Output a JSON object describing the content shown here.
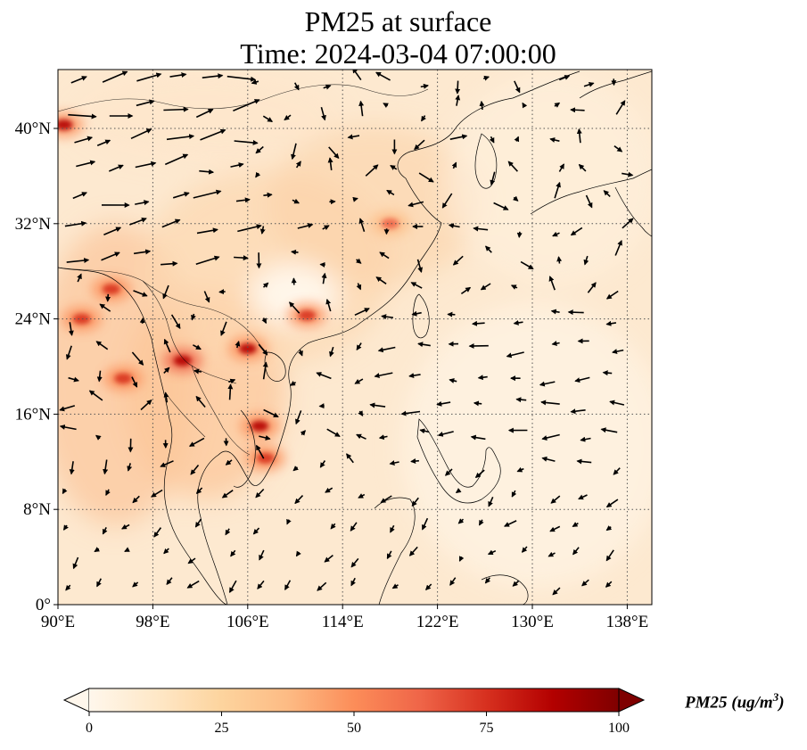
{
  "title": {
    "line1": "PM25 at surface",
    "line2": "Time: 2024-03-04 07:00:00"
  },
  "map": {
    "projection": "PlateCarree",
    "lon_range": [
      90,
      140
    ],
    "lat_range": [
      0,
      45
    ],
    "gridlines": "dotted",
    "lon_ticks": [
      "90°E",
      "98°E",
      "106°E",
      "114°E",
      "122°E",
      "130°E",
      "138°E"
    ],
    "lat_ticks": [
      "0°",
      "8°N",
      "16°N",
      "24°N",
      "32°N",
      "40°N"
    ],
    "lon_tick_values": [
      90,
      98,
      106,
      114,
      122,
      130,
      138
    ],
    "lat_tick_values": [
      0,
      8,
      16,
      24,
      32,
      40
    ],
    "overlay": "wind vectors (arrows)",
    "field": "PM25 concentration, OrRd colormap"
  },
  "colorbar": {
    "label": "PM25 (ug/m",
    "label_sup": "3",
    "label_close": ")",
    "ticks": [
      "0",
      "25",
      "50",
      "75",
      "100"
    ],
    "tick_values": [
      0,
      25,
      50,
      75,
      100
    ],
    "range": [
      0,
      100
    ],
    "extend": "both",
    "colors": [
      "#fff7ec",
      "#fee8c8",
      "#fdd49e",
      "#fdbb84",
      "#fc8d59",
      "#ef6548",
      "#d7301f",
      "#b30000",
      "#7f0000"
    ]
  },
  "hotspots": [
    {
      "lon": 90.5,
      "lat": 40.3,
      "value": 85
    },
    {
      "lon": 94.5,
      "lat": 26.5,
      "value": 80
    },
    {
      "lon": 100.5,
      "lat": 20.5,
      "value": 90
    },
    {
      "lon": 106.0,
      "lat": 21.5,
      "value": 85
    },
    {
      "lon": 107.0,
      "lat": 15.0,
      "value": 85
    },
    {
      "lon": 107.5,
      "lat": 12.3,
      "value": 80
    },
    {
      "lon": 111.0,
      "lat": 24.3,
      "value": 75
    },
    {
      "lon": 92.0,
      "lat": 24.0,
      "value": 70
    },
    {
      "lon": 95.5,
      "lat": 19.0,
      "value": 70
    },
    {
      "lon": 118.0,
      "lat": 32.0,
      "value": 60
    }
  ]
}
